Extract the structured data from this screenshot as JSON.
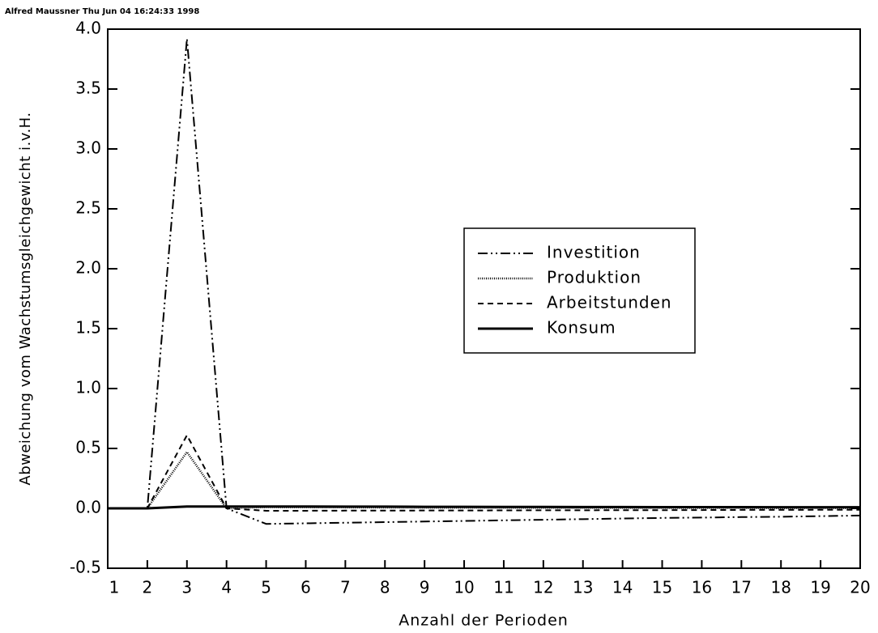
{
  "header": "Alfred Maussner Thu Jun 04 16:24:33 1998",
  "chart_data": {
    "type": "line",
    "x_label": "Anzahl der Perioden",
    "y_label": "Abweichung vom Wachstumsgleichgewicht i.v.H.",
    "x": [
      1,
      2,
      3,
      4,
      5,
      6,
      7,
      8,
      9,
      10,
      11,
      12,
      13,
      14,
      15,
      16,
      17,
      18,
      19,
      20
    ],
    "xlim": [
      1,
      20
    ],
    "xticks": [
      1,
      2,
      3,
      4,
      5,
      6,
      7,
      8,
      9,
      10,
      11,
      12,
      13,
      14,
      15,
      16,
      17,
      18,
      19,
      20
    ],
    "ylim": [
      -0.5,
      4
    ],
    "yticks": [
      -0.5,
      {
        "value": 0,
        "label": "0.0"
      },
      0.5,
      {
        "value": 1,
        "label": "1.0"
      },
      1.5,
      {
        "value": 2,
        "label": "2.0"
      },
      2.5,
      {
        "value": 3,
        "label": "3.0"
      },
      3.5,
      {
        "value": 4,
        "label": "4.0"
      }
    ],
    "grid": false,
    "legend": "center-right",
    "series": [
      {
        "name": "Investition",
        "color": "#000000",
        "dash": "12,4,2,4,2,4",
        "width": 2,
        "values": [
          0,
          0,
          3.92,
          0,
          -0.13,
          -0.125,
          -0.12,
          -0.115,
          -0.11,
          -0.105,
          -0.1,
          -0.095,
          -0.09,
          -0.085,
          -0.08,
          -0.077,
          -0.073,
          -0.07,
          -0.065,
          -0.06
        ]
      },
      {
        "name": "Produktion",
        "color": "#000000",
        "dash": "1,1.5",
        "width": 2.5,
        "values": [
          0,
          0,
          0.47,
          0,
          0.01,
          0.009,
          0.008,
          0.007,
          0.006,
          0.006,
          0.005,
          0.005,
          0.004,
          0.004,
          0.003,
          0.003,
          0.003,
          0.002,
          0.002,
          0.002
        ]
      },
      {
        "name": "Arbeitstunden",
        "color": "#000000",
        "dash": "7,5",
        "width": 2,
        "values": [
          0,
          0,
          0.61,
          0,
          -0.02,
          -0.02,
          -0.019,
          -0.019,
          -0.018,
          -0.018,
          -0.017,
          -0.016,
          -0.016,
          -0.015,
          -0.015,
          -0.014,
          -0.013,
          -0.013,
          -0.012,
          -0.012
        ]
      },
      {
        "name": "Konsum",
        "color": "#000000",
        "dash": "none",
        "width": 3,
        "values": [
          0,
          0,
          0.015,
          0.015,
          0.015,
          0.015,
          0.014,
          0.014,
          0.013,
          0.013,
          0.012,
          0.012,
          0.011,
          0.011,
          0.01,
          0.01,
          0.01,
          0.009,
          0.009,
          0.009
        ]
      }
    ]
  }
}
